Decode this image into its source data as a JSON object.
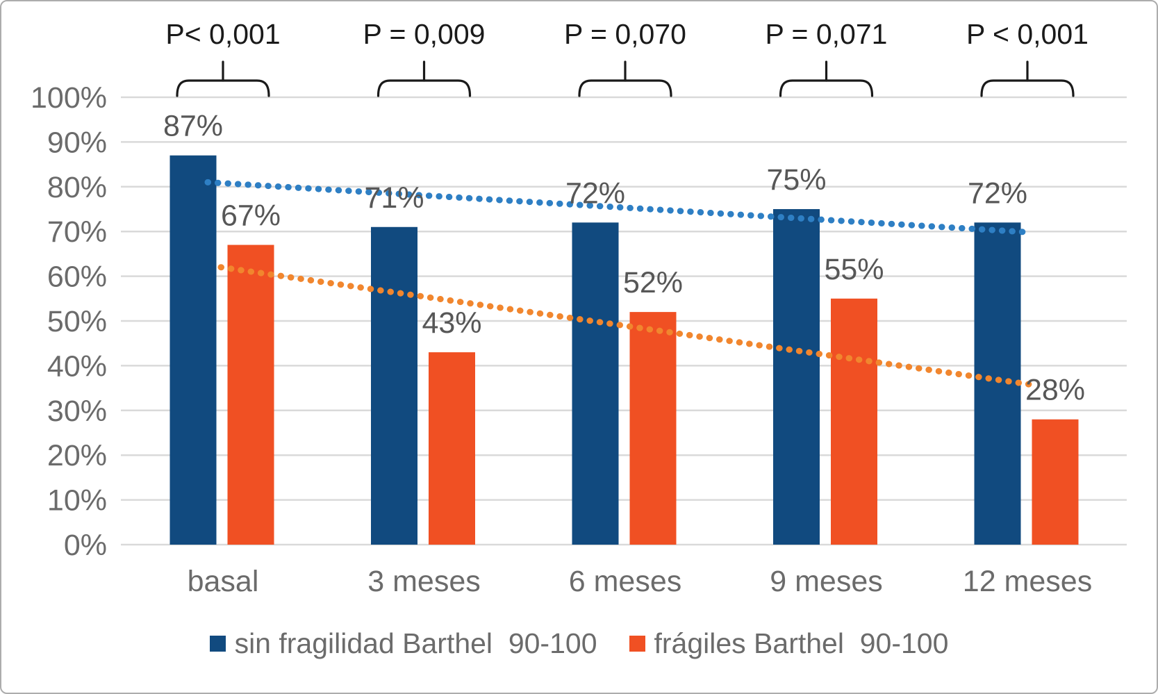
{
  "chart_data": {
    "type": "bar",
    "categories": [
      "basal",
      "3 meses",
      "6 meses",
      "9 meses",
      "12 meses"
    ],
    "series": [
      {
        "name": "sin fragilidad Barthel  90-100",
        "color": "#114A7F",
        "values": [
          87,
          71,
          72,
          75,
          72
        ],
        "value_labels": [
          "87%",
          "71%",
          "72%",
          "75%",
          "72%"
        ]
      },
      {
        "name": "frágiles Barthel  90-100",
        "color": "#F05023",
        "values": [
          67,
          43,
          52,
          55,
          28
        ],
        "value_labels": [
          "67%",
          "43%",
          "52%",
          "55%",
          "28%"
        ]
      }
    ],
    "p_values": [
      "P< 0,001",
      "P = 0,009",
      "P = 0,070",
      "P = 0,071",
      "P < 0,001"
    ],
    "y_ticks": [
      {
        "value": 0,
        "label": "0%"
      },
      {
        "value": 10,
        "label": "10%"
      },
      {
        "value": 20,
        "label": "20%"
      },
      {
        "value": 30,
        "label": "30%"
      },
      {
        "value": 40,
        "label": "40%"
      },
      {
        "value": 50,
        "label": "50%"
      },
      {
        "value": 60,
        "label": "60%"
      },
      {
        "value": 70,
        "label": "70%"
      },
      {
        "value": 80,
        "label": "80%"
      },
      {
        "value": 90,
        "label": "90%"
      },
      {
        "value": 100,
        "label": "100%"
      }
    ],
    "ylim": [
      0,
      100
    ],
    "grid": true,
    "legend_position": "bottom",
    "trendlines": [
      {
        "series": "sin fragilidad Barthel  90-100",
        "style": "dotted",
        "color": "#2E7FC4",
        "from_pct": 81.0,
        "to_pct": 69.8
      },
      {
        "series": "frágiles Barthel  90-100",
        "style": "dotted",
        "color": "#F1862E",
        "from_pct": 62.0,
        "to_pct": 35.8
      }
    ]
  },
  "colors": {
    "gridline": "#D9D9D9",
    "axis_text": "#6B6B6B",
    "value_text": "#575757",
    "p_text": "#1A1A1A",
    "bracket": "#1A1A1A",
    "border": "#ACACAC",
    "background": "#FFFFFF"
  }
}
